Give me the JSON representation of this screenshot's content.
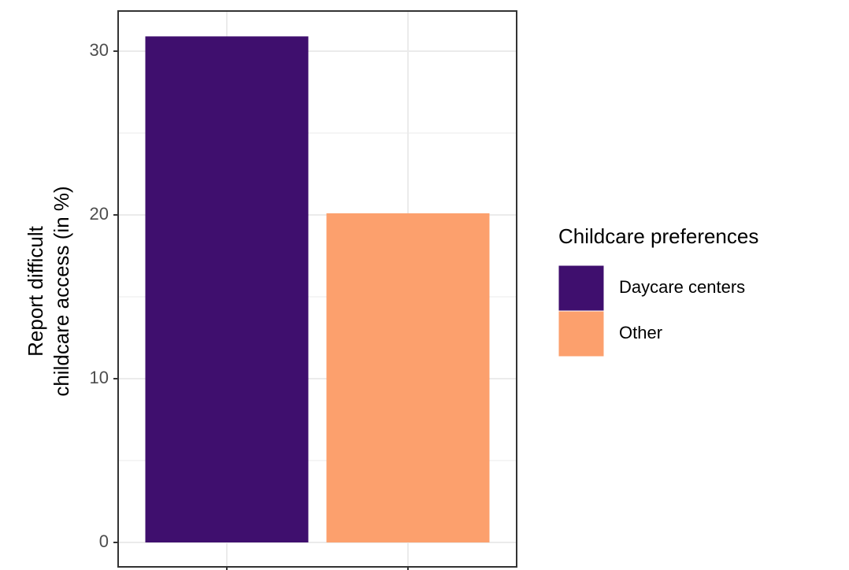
{
  "chart_data": {
    "type": "bar",
    "ylabel": [
      "Report difficult",
      "childcare access (in %)"
    ],
    "legend_title": "Childcare preferences",
    "categories": [
      null,
      null
    ],
    "series": [
      {
        "name": "Daycare centers",
        "color": "#3f0f6e",
        "values": [
          30.9,
          null
        ]
      },
      {
        "name": "Other",
        "color": "#fca06d",
        "values": [
          null,
          20.1
        ]
      }
    ],
    "ylim": [
      -1.49,
      32.45
    ],
    "yticks": [
      0,
      10,
      20,
      30
    ],
    "yminor": [
      5,
      15,
      25
    ],
    "grid": true,
    "legend": "right"
  }
}
